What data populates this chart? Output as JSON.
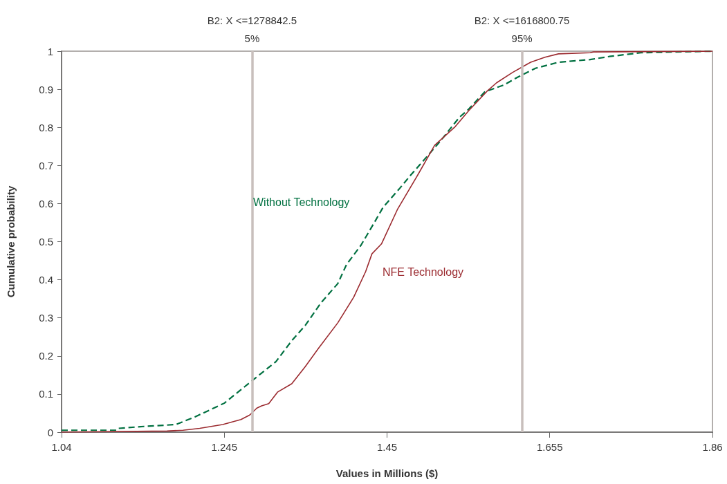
{
  "chart_data": {
    "type": "line",
    "xlabel": "Values in Millions ($)",
    "ylabel": "Cumulative probability",
    "xlim": [
      1.04,
      1.86
    ],
    "xticks": [
      1.04,
      1.245,
      1.45,
      1.655,
      1.86
    ],
    "ylim": [
      0,
      1
    ],
    "yticks": [
      0,
      0.1,
      0.2,
      0.3,
      0.4,
      0.5,
      0.6,
      0.7,
      0.8,
      0.9,
      1
    ],
    "grid": false,
    "legend": false,
    "marker": "none",
    "ref_lines": [
      {
        "axis": "x",
        "value": 1.2788425,
        "label": "B2: X <=1278842.5\n5%",
        "color": "#c8bfbc"
      },
      {
        "axis": "x",
        "value": 1.617,
        "label": "B2: X <=1616800.75\n95%",
        "color": "#c8bfbc"
      }
    ],
    "series": [
      {
        "name": "Without Technology",
        "color": "#007040",
        "line_style": "dashed",
        "x": [
          1.04,
          1.11,
          1.112,
          1.144,
          1.184,
          1.208,
          1.245,
          1.277,
          1.31,
          1.33,
          1.347,
          1.367,
          1.388,
          1.399,
          1.417,
          1.434,
          1.445,
          1.466,
          1.48,
          1.501,
          1.518,
          1.541,
          1.553,
          1.573,
          1.597,
          1.614,
          1.637,
          1.666,
          1.706,
          1.73,
          1.77,
          1.86
        ],
        "values": [
          0.005,
          0.005,
          0.01,
          0.015,
          0.02,
          0.04,
          0.076,
          0.13,
          0.185,
          0.24,
          0.28,
          0.34,
          0.39,
          0.44,
          0.49,
          0.55,
          0.59,
          0.64,
          0.675,
          0.725,
          0.766,
          0.826,
          0.848,
          0.893,
          0.911,
          0.931,
          0.955,
          0.971,
          0.978,
          0.986,
          0.996,
          1
        ]
      },
      {
        "name": "NFE Technology",
        "color": "#9b2a2f",
        "line_style": "solid",
        "x": [
          1.04,
          1.173,
          1.193,
          1.214,
          1.243,
          1.266,
          1.277,
          1.286,
          1.292,
          1.301,
          1.312,
          1.33,
          1.347,
          1.364,
          1.388,
          1.408,
          1.423,
          1.431,
          1.443,
          1.463,
          1.489,
          1.51,
          1.536,
          1.553,
          1.576,
          1.588,
          1.608,
          1.631,
          1.649,
          1.666,
          1.706,
          1.71,
          1.86
        ],
        "values": [
          0,
          0.003,
          0.005,
          0.01,
          0.02,
          0.033,
          0.045,
          0.063,
          0.069,
          0.075,
          0.105,
          0.127,
          0.172,
          0.221,
          0.287,
          0.354,
          0.421,
          0.468,
          0.494,
          0.584,
          0.676,
          0.753,
          0.802,
          0.844,
          0.895,
          0.917,
          0.944,
          0.971,
          0.984,
          0.993,
          0.996,
          0.998,
          1
        ]
      }
    ]
  }
}
